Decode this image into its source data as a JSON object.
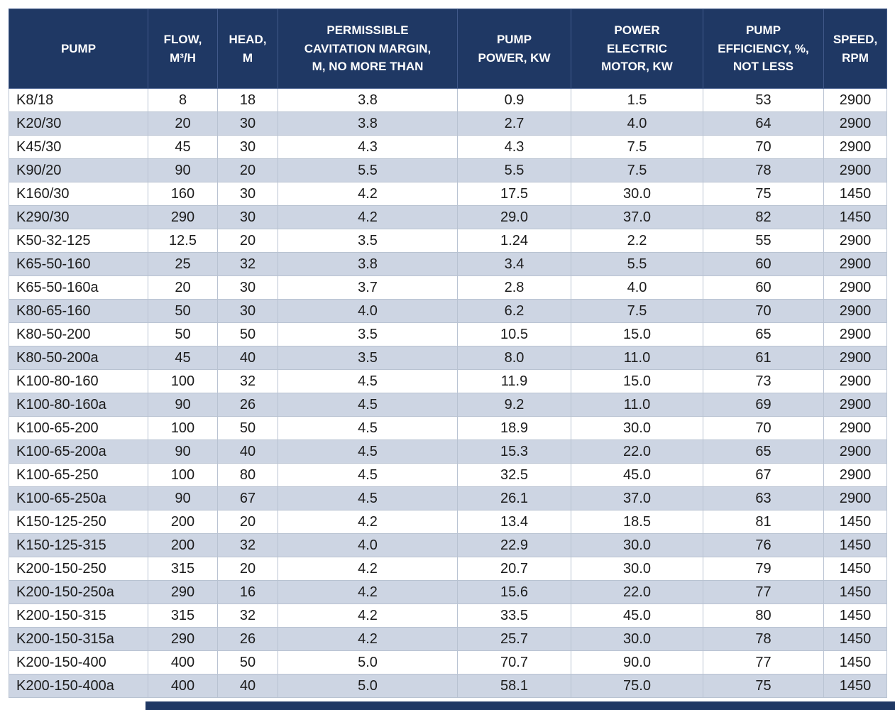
{
  "table": {
    "columns": [
      {
        "key": "pump",
        "label": "PUMP"
      },
      {
        "key": "flow",
        "label": "FLOW,\nM³/H"
      },
      {
        "key": "head",
        "label": "HEAD,\nM"
      },
      {
        "key": "cavitation",
        "label": "PERMISSIBLE\nCAVITATION MARGIN,\nM, NO MORE THAN"
      },
      {
        "key": "pump_power",
        "label": "PUMP\nPOWER, KW"
      },
      {
        "key": "motor_power",
        "label": "POWER\nELECTRIC\nMOTOR, KW"
      },
      {
        "key": "efficiency",
        "label": "PUMP\nEFFICIENCY, %,\nNOT LESS"
      },
      {
        "key": "speed",
        "label": "SPEED,\nRPM"
      }
    ],
    "rows": [
      [
        "K8/18",
        "8",
        "18",
        "3.8",
        "0.9",
        "1.5",
        "53",
        "2900"
      ],
      [
        "K20/30",
        "20",
        "30",
        "3.8",
        "2.7",
        "4.0",
        "64",
        "2900"
      ],
      [
        "K45/30",
        "45",
        "30",
        "4.3",
        "4.3",
        "7.5",
        "70",
        "2900"
      ],
      [
        "K90/20",
        "90",
        "20",
        "5.5",
        "5.5",
        "7.5",
        "78",
        "2900"
      ],
      [
        "K160/30",
        "160",
        "30",
        "4.2",
        "17.5",
        "30.0",
        "75",
        "1450"
      ],
      [
        "K290/30",
        "290",
        "30",
        "4.2",
        "29.0",
        "37.0",
        "82",
        "1450"
      ],
      [
        "K50-32-125",
        "12.5",
        "20",
        "3.5",
        "1.24",
        "2.2",
        "55",
        "2900"
      ],
      [
        "K65-50-160",
        "25",
        "32",
        "3.8",
        "3.4",
        "5.5",
        "60",
        "2900"
      ],
      [
        "K65-50-160a",
        "20",
        "30",
        "3.7",
        "2.8",
        "4.0",
        "60",
        "2900"
      ],
      [
        "K80-65-160",
        "50",
        "30",
        "4.0",
        "6.2",
        "7.5",
        "70",
        "2900"
      ],
      [
        "K80-50-200",
        "50",
        "50",
        "3.5",
        "10.5",
        "15.0",
        "65",
        "2900"
      ],
      [
        "K80-50-200a",
        "45",
        "40",
        "3.5",
        "8.0",
        "11.0",
        "61",
        "2900"
      ],
      [
        "K100-80-160",
        "100",
        "32",
        "4.5",
        "11.9",
        "15.0",
        "73",
        "2900"
      ],
      [
        "K100-80-160a",
        "90",
        "26",
        "4.5",
        "9.2",
        "11.0",
        "69",
        "2900"
      ],
      [
        "K100-65-200",
        "100",
        "50",
        "4.5",
        "18.9",
        "30.0",
        "70",
        "2900"
      ],
      [
        "K100-65-200a",
        "90",
        "40",
        "4.5",
        "15.3",
        "22.0",
        "65",
        "2900"
      ],
      [
        "K100-65-250",
        "100",
        "80",
        "4.5",
        "32.5",
        "45.0",
        "67",
        "2900"
      ],
      [
        "K100-65-250a",
        "90",
        "67",
        "4.5",
        "26.1",
        "37.0",
        "63",
        "2900"
      ],
      [
        "K150-125-250",
        "200",
        "20",
        "4.2",
        "13.4",
        "18.5",
        "81",
        "1450"
      ],
      [
        "K150-125-315",
        "200",
        "32",
        "4.0",
        "22.9",
        "30.0",
        "76",
        "1450"
      ],
      [
        "K200-150-250",
        "315",
        "20",
        "4.2",
        "20.7",
        "30.0",
        "79",
        "1450"
      ],
      [
        "K200-150-250a",
        "290",
        "16",
        "4.2",
        "15.6",
        "22.0",
        "77",
        "1450"
      ],
      [
        "K200-150-315",
        "315",
        "32",
        "4.2",
        "33.5",
        "45.0",
        "80",
        "1450"
      ],
      [
        "K200-150-315a",
        "290",
        "26",
        "4.2",
        "25.7",
        "30.0",
        "78",
        "1450"
      ],
      [
        "K200-150-400",
        "400",
        "50",
        "5.0",
        "70.7",
        "90.0",
        "77",
        "1450"
      ],
      [
        "K200-150-400a",
        "400",
        "40",
        "5.0",
        "58.1",
        "75.0",
        "75",
        "1450"
      ]
    ]
  },
  "colors": {
    "header_bg": "#1f3864",
    "header_text": "#ffffff",
    "row_bg": "#ffffff",
    "row_alt_bg": "#cdd5e3",
    "border": "#b9c3d2"
  }
}
